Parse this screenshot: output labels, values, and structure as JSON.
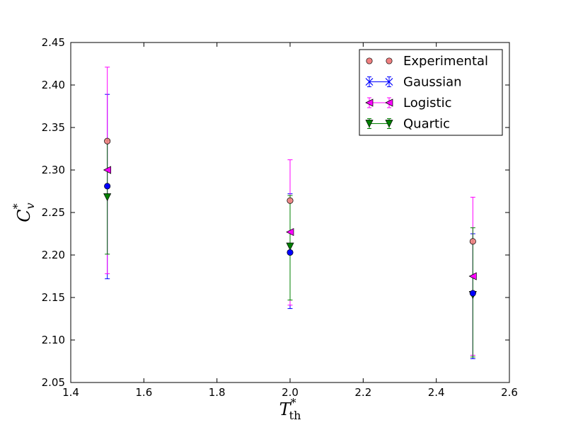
{
  "chart_data": {
    "type": "scatter",
    "title": "",
    "xlabel": {
      "base": "T",
      "sup": "*",
      "sub": "th"
    },
    "ylabel": {
      "base": "C",
      "sup": "*",
      "sub": "v"
    },
    "xlim": [
      1.4,
      2.6
    ],
    "ylim": [
      2.05,
      2.45
    ],
    "xticks": [
      "1.4",
      "1.6",
      "1.8",
      "2.0",
      "2.2",
      "2.4",
      "2.6"
    ],
    "yticks": [
      "2.05",
      "2.10",
      "2.15",
      "2.20",
      "2.25",
      "2.30",
      "2.35",
      "2.40",
      "2.45"
    ],
    "grid": false,
    "legend_position": "top-right",
    "series": [
      {
        "name": "Experimental",
        "marker": "circle",
        "color": "#f08080",
        "x": [
          1.5,
          2.0,
          2.5
        ],
        "y": [
          2.334,
          2.264,
          2.216
        ]
      },
      {
        "name": "Gaussian",
        "marker": "circle",
        "color": "#0000ff",
        "legend_marker": "x",
        "x": [
          1.5,
          2.0,
          2.5
        ],
        "y": [
          2.281,
          2.203,
          2.155
        ],
        "err_low": [
          2.172,
          2.137,
          2.078
        ],
        "err_high": [
          2.389,
          2.272,
          2.225
        ]
      },
      {
        "name": "Logistic",
        "marker": "triangle-left",
        "color": "#ff00ff",
        "x": [
          1.5,
          2.0,
          2.5
        ],
        "y": [
          2.3,
          2.227,
          2.175
        ],
        "err_low": [
          2.178,
          2.141,
          2.082
        ],
        "err_high": [
          2.421,
          2.312,
          2.268
        ]
      },
      {
        "name": "Quartic",
        "marker": "triangle-down",
        "color": "#008000",
        "x": [
          1.5,
          2.0,
          2.5
        ],
        "y": [
          2.268,
          2.21,
          2.153
        ],
        "err_low": [
          2.201,
          2.147,
          2.08
        ],
        "err_high": [
          2.335,
          2.27,
          2.232
        ]
      }
    ]
  }
}
